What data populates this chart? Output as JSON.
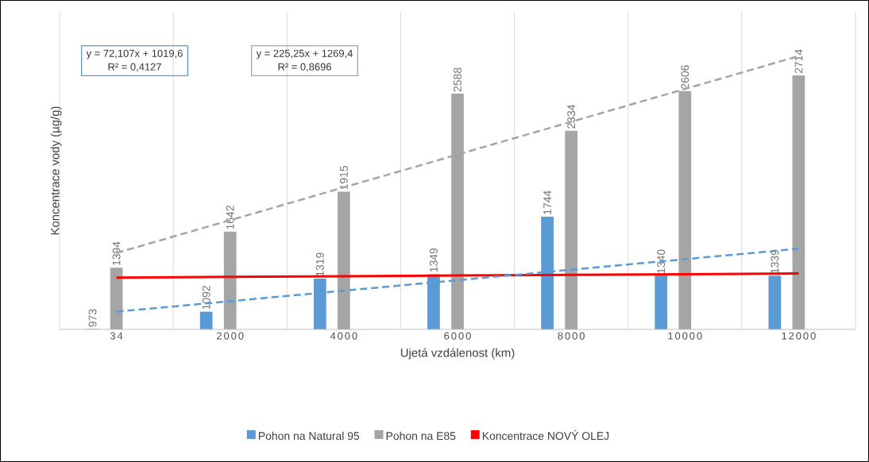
{
  "chart_data": {
    "type": "bar",
    "xlabel": "Ujetá vzdálenost (km)",
    "ylabel": "Koncentrace vody (µg/g)",
    "categories": [
      "34",
      "2000",
      "4000",
      "6000",
      "8000",
      "10000",
      "12000"
    ],
    "ylim": [
      970,
      3150
    ],
    "tick_labels": "x",
    "grid": "x",
    "legend": "bottom",
    "series": [
      {
        "name": "Pohon na Natural 95",
        "color": "#5b9bd5",
        "values": [
          973,
          1092,
          1319,
          1349,
          1744,
          1340,
          1339
        ],
        "value_labels": [
          "973",
          "1092",
          "1319",
          "1349",
          "1744",
          "1340",
          "1339"
        ]
      },
      {
        "name": "Pohon na E85",
        "color": "#a5a5a5",
        "values": [
          1394,
          1642,
          1915,
          2588,
          2334,
          2606,
          2714
        ],
        "value_labels": [
          "1394",
          "1642",
          "1915",
          "2588",
          "2334",
          "2606",
          "2714"
        ]
      },
      {
        "name": "Koncentrace NOVÝ OLEJ",
        "type": "line",
        "color": "#ff0000",
        "values": [
          1326,
          1331,
          1335,
          1340,
          1345,
          1349,
          1354
        ]
      },
      {
        "type": "line",
        "line_style": "dashed",
        "color": "#5b9bd5",
        "values": [
          1091.7,
          1163.8,
          1235.9,
          1308.0,
          1380.1,
          1452.2,
          1524.3
        ]
      },
      {
        "type": "line",
        "line_style": "dashed",
        "color": "#a5a5a5",
        "values": [
          1494.7,
          1719.9,
          1945.2,
          2170.4,
          2395.7,
          2620.9,
          2846.2
        ]
      }
    ],
    "annotations": [
      "y = 72,107x + 1019,6",
      "R² = 0,4127",
      "y = 225,25x + 1269,4",
      "R² = 0,8696"
    ]
  }
}
